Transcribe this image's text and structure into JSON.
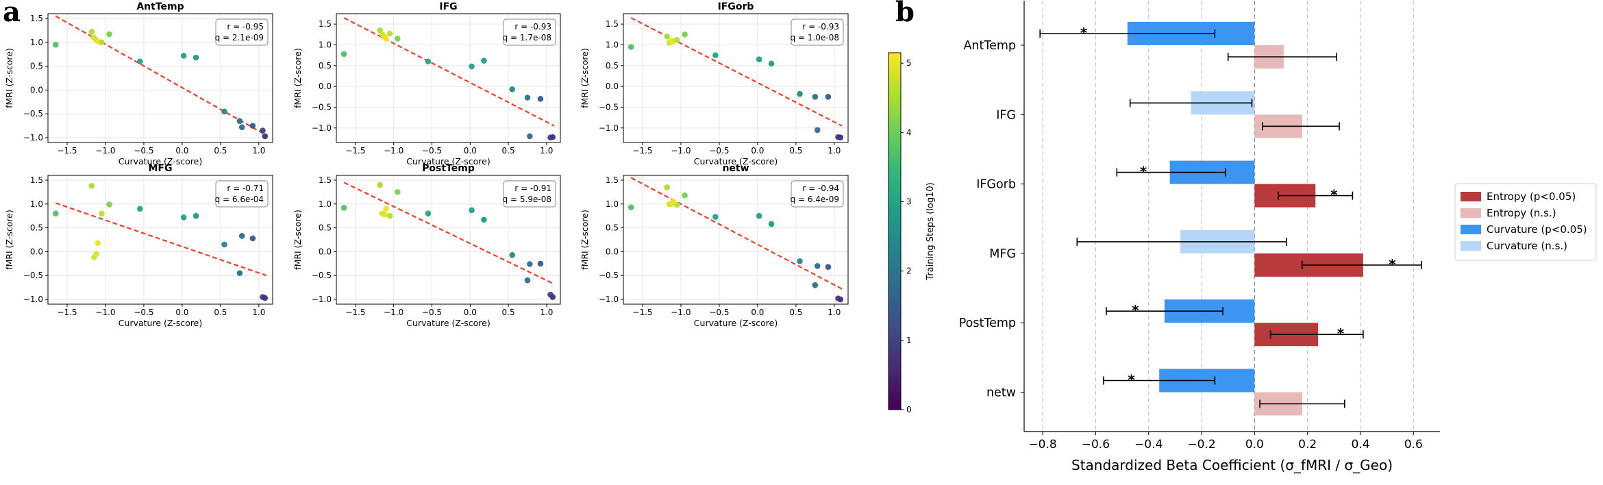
{
  "panel_labels": {
    "a": "a",
    "b": "b"
  },
  "chart_data": [
    {
      "type": "scatter",
      "panel": "a",
      "xlabel": "Curvature (Z-score)",
      "ylabel": "fMRI (Z-score)",
      "xlim": [
        -1.75,
        1.18
      ],
      "colorbar": {
        "label": "Training Steps (log10)",
        "range": [
          0,
          5.15
        ],
        "ticks": [
          0,
          1,
          2,
          3,
          4,
          5
        ],
        "colormap": "viridis"
      },
      "x": [
        -1.65,
        -1.18,
        -1.15,
        -1.12,
        -1.1,
        -1.05,
        -0.95,
        -0.55,
        0.02,
        0.18,
        0.55,
        0.75,
        0.78,
        0.92,
        1.05,
        1.08
      ],
      "color_values": [
        3.7,
        4.5,
        4.8,
        4.9,
        5.0,
        4.6,
        4.1,
        3.0,
        2.9,
        2.8,
        2.4,
        1.9,
        1.8,
        1.4,
        1.0,
        0.7
      ],
      "subplots": [
        {
          "title": "AntTemp",
          "r_text": "r = -0.95",
          "q_text": "q = 2.1e-09",
          "ylim": [
            -1.1,
            1.6
          ],
          "yticks": [
            -1.0,
            -0.5,
            0.0,
            0.5,
            1.0,
            1.5
          ],
          "y": [
            0.95,
            1.22,
            1.1,
            1.05,
            1.02,
            1.0,
            1.17,
            0.6,
            0.72,
            0.68,
            -0.45,
            -0.65,
            -0.78,
            -0.75,
            -0.85,
            -0.97
          ],
          "fit": {
            "x": [
              -1.65,
              1.1
            ],
            "y": [
              1.55,
              -0.95
            ]
          }
        },
        {
          "title": "IFG",
          "r_text": "r = -0.93",
          "q_text": "q = 1.7e-08",
          "ylim": [
            -1.35,
            1.75
          ],
          "yticks": [
            -1.0,
            -0.5,
            0.0,
            0.5,
            1.0,
            1.5
          ],
          "y": [
            0.78,
            1.35,
            1.25,
            1.2,
            1.15,
            1.27,
            1.15,
            0.6,
            0.48,
            0.62,
            -0.07,
            -0.27,
            -1.2,
            -0.3,
            -1.23,
            -1.22
          ],
          "fit": {
            "x": [
              -1.65,
              1.1
            ],
            "y": [
              1.65,
              -0.95
            ]
          }
        },
        {
          "title": "IFGorb",
          "r_text": "r = -0.93",
          "q_text": "q = 1.0e-08",
          "ylim": [
            -1.35,
            1.75
          ],
          "yticks": [
            -1.0,
            -0.5,
            0.0,
            0.5,
            1.0,
            1.5
          ],
          "y": [
            0.95,
            1.2,
            1.05,
            1.1,
            1.08,
            1.12,
            1.25,
            0.75,
            0.65,
            0.55,
            -0.18,
            -0.25,
            -1.05,
            -0.25,
            -1.22,
            -1.23
          ],
          "fit": {
            "x": [
              -1.65,
              1.1
            ],
            "y": [
              1.65,
              -0.95
            ]
          }
        },
        {
          "title": "MFG",
          "r_text": "r = -0.71",
          "q_text": "q = 6.6e-04",
          "ylim": [
            -1.1,
            1.6
          ],
          "yticks": [
            -1.0,
            -0.5,
            0.0,
            0.5,
            1.0,
            1.5
          ],
          "y": [
            0.8,
            1.38,
            -0.12,
            -0.05,
            0.18,
            0.8,
            0.99,
            0.9,
            0.72,
            0.75,
            0.15,
            -0.45,
            0.33,
            0.28,
            -0.95,
            -0.97
          ],
          "fit": {
            "x": [
              -1.65,
              1.1
            ],
            "y": [
              1.02,
              -0.5
            ]
          }
        },
        {
          "title": "PostTemp",
          "r_text": "r = -0.91",
          "q_text": "q = 5.9e-08",
          "ylim": [
            -1.1,
            1.6
          ],
          "yticks": [
            -1.0,
            -0.5,
            0.0,
            0.5,
            1.0,
            1.5
          ],
          "y": [
            0.92,
            1.4,
            0.8,
            0.78,
            0.9,
            0.75,
            1.25,
            0.8,
            0.87,
            0.67,
            -0.07,
            -0.6,
            -0.26,
            -0.25,
            -0.9,
            -0.95
          ],
          "fit": {
            "x": [
              -1.65,
              1.1
            ],
            "y": [
              1.45,
              -0.68
            ]
          }
        },
        {
          "title": "netw",
          "r_text": "r = -0.94",
          "q_text": "q = 6.4e-09",
          "ylim": [
            -1.1,
            1.6
          ],
          "yticks": [
            -1.0,
            -0.5,
            0.0,
            0.5,
            1.0,
            1.5
          ],
          "y": [
            0.93,
            1.35,
            1.0,
            1.0,
            1.05,
            0.98,
            1.18,
            0.73,
            0.75,
            0.58,
            -0.2,
            -0.7,
            -0.3,
            -0.32,
            -0.98,
            -1.0
          ],
          "fit": {
            "x": [
              -1.65,
              1.1
            ],
            "y": [
              1.55,
              -0.78
            ]
          }
        }
      ]
    },
    {
      "type": "bar",
      "orientation": "horizontal",
      "panel": "b",
      "xlabel": "Standardized Beta Coefficient (σ_fMRI / σ_Geo)",
      "xlim": [
        -0.87,
        0.7
      ],
      "xticks": [
        -0.8,
        -0.6,
        -0.4,
        -0.2,
        0.0,
        0.2,
        0.4,
        0.6
      ],
      "categories": [
        "AntTemp",
        "IFG",
        "IFGorb",
        "MFG",
        "PostTemp",
        "netw"
      ],
      "series": [
        {
          "name": "Curvature",
          "values": [
            -0.48,
            -0.24,
            -0.32,
            -0.28,
            -0.34,
            -0.36
          ],
          "ci_low": [
            -0.81,
            -0.47,
            -0.52,
            -0.67,
            -0.56,
            -0.57
          ],
          "ci_high": [
            -0.15,
            -0.01,
            -0.11,
            0.12,
            -0.12,
            -0.15
          ],
          "significant": [
            true,
            false,
            true,
            false,
            true,
            true
          ]
        },
        {
          "name": "Entropy",
          "values": [
            0.11,
            0.18,
            0.23,
            0.41,
            0.24,
            0.18
          ],
          "ci_low": [
            -0.1,
            0.03,
            0.09,
            0.18,
            0.06,
            0.02
          ],
          "ci_high": [
            0.31,
            0.32,
            0.37,
            0.63,
            0.41,
            0.34
          ],
          "significant": [
            false,
            false,
            true,
            true,
            true,
            false
          ]
        }
      ],
      "colors": {
        "entropy_sig": "#b83a3a",
        "entropy_ns": "#e8b9b9",
        "curvature_sig": "#3d95f2",
        "curvature_ns": "#b5d6f7"
      },
      "legend": {
        "position": "right",
        "items": [
          {
            "label": "Entropy (p<0.05)",
            "color": "#b83a3a"
          },
          {
            "label": "Entropy (n.s.)",
            "color": "#e8b9b9"
          },
          {
            "label": "Curvature (p<0.05)",
            "color": "#3d95f2"
          },
          {
            "label": "Curvature (n.s.)",
            "color": "#b5d6f7"
          }
        ]
      },
      "sig_marker": "*"
    }
  ]
}
